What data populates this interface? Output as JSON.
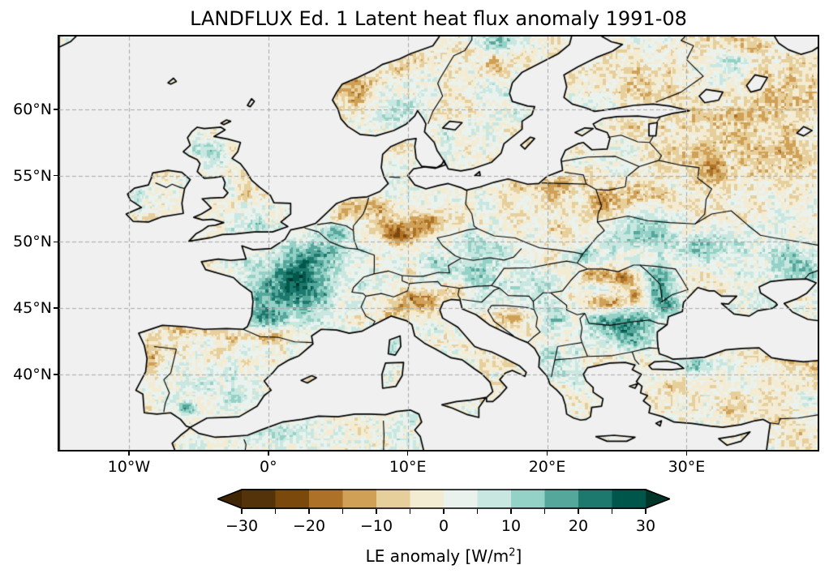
{
  "figure": {
    "title": "LANDFLUX Ed. 1 Latent heat flux anomaly 1991-08",
    "background_color": "#ffffff"
  },
  "map": {
    "ocean_color": "#f0f0f0",
    "coastline_color": "#000000",
    "border_color": "#000000",
    "gridline_color": "#a9a9a9",
    "extent": {
      "lon_min": -15,
      "lon_max": 39.4,
      "lat_min": 34.3,
      "lat_max": 65.5
    },
    "x_ticks": [
      {
        "deg": -10,
        "label": "10°W"
      },
      {
        "deg": 0,
        "label": "0°"
      },
      {
        "deg": 10,
        "label": "10°E"
      },
      {
        "deg": 20,
        "label": "20°E"
      },
      {
        "deg": 30,
        "label": "30°E"
      }
    ],
    "y_ticks": [
      {
        "deg": 60,
        "label": "60°N"
      },
      {
        "deg": 55,
        "label": "55°N"
      },
      {
        "deg": 50,
        "label": "50°N"
      },
      {
        "deg": 45,
        "label": "45°N"
      },
      {
        "deg": 40,
        "label": "40°N"
      }
    ]
  },
  "colorbar": {
    "label_prefix": "LE anomaly [W/m",
    "label_sup": "2",
    "label_suffix": "]",
    "tick_values": [
      -30,
      -25,
      -20,
      -15,
      -10,
      -5,
      0,
      5,
      10,
      15,
      20,
      25,
      30
    ],
    "tick_labels": [
      "−30",
      "",
      "−20",
      "",
      "−10",
      "",
      "0",
      "",
      "10",
      "",
      "20",
      "",
      "30"
    ],
    "levels": [
      -30,
      -25,
      -20,
      -15,
      -10,
      -5,
      0,
      5,
      10,
      15,
      20,
      25,
      30
    ],
    "bin_colors": [
      "#54330a",
      "#7c490d",
      "#ae7128",
      "#cfa055",
      "#e7cf9c",
      "#f4ebd3",
      "#eaf2ee",
      "#c8e7e0",
      "#94d1c6",
      "#55a79b",
      "#1d786d",
      "#00564a"
    ],
    "under_color": "#402605",
    "over_color": "#00352a",
    "outline_color": "#000000"
  },
  "chart_data": {
    "type": "heatmap",
    "title": "LANDFLUX Ed. 1 Latent heat flux anomaly 1991-08",
    "units": "W/m2",
    "value_range": [
      -30,
      30
    ],
    "bin_width": 5,
    "colormap": "brown-to-teal diverging (BrBG-like), 12 discrete bins with under/over arrows",
    "map_extent_deg": {
      "lon": [
        -15,
        39.4
      ],
      "lat": [
        34.3,
        65.5
      ]
    },
    "grid_lons_deg": [
      -10,
      0,
      10,
      20,
      30
    ],
    "grid_lats_deg": [
      40,
      45,
      50,
      55,
      60
    ],
    "anomaly_regions": [
      {
        "name": "france-core-wet",
        "lon": 1.8,
        "lat": 46.6,
        "sx": 3.0,
        "sy": 2.4,
        "amp": 22
      },
      {
        "name": "france-north-wet",
        "lon": 3.3,
        "lat": 48.9,
        "sx": 2.2,
        "sy": 1.3,
        "amp": 12
      },
      {
        "name": "france-southwest-wet",
        "lon": -0.3,
        "lat": 44.3,
        "sx": 1.4,
        "sy": 1.2,
        "amp": 14
      },
      {
        "name": "belgium-wet",
        "lon": 4.8,
        "lat": 50.7,
        "sx": 1.1,
        "sy": 0.7,
        "amp": 13
      },
      {
        "name": "netherlands-dry",
        "lon": 5.7,
        "lat": 52.4,
        "sx": 0.9,
        "sy": 0.8,
        "amp": -13
      },
      {
        "name": "nw-germany-dry",
        "lon": 7.9,
        "lat": 52.2,
        "sx": 1.2,
        "sy": 0.9,
        "amp": -9
      },
      {
        "name": "central-germany-dry",
        "lon": 9.4,
        "lat": 50.7,
        "sx": 1.5,
        "sy": 1.0,
        "amp": -22
      },
      {
        "name": "east-germany-dry",
        "lon": 11.3,
        "lat": 51.4,
        "sx": 1.5,
        "sy": 0.9,
        "amp": -12
      },
      {
        "name": "bavaria-wet",
        "lon": 11.6,
        "lat": 48.5,
        "sx": 1.6,
        "sy": 1.0,
        "amp": 7
      },
      {
        "name": "austria-alps-wet",
        "lon": 14.2,
        "lat": 47.4,
        "sx": 1.9,
        "sy": 0.9,
        "amp": 10
      },
      {
        "name": "czech-wet",
        "lon": 15.3,
        "lat": 49.7,
        "sx": 1.5,
        "sy": 0.9,
        "amp": 8
      },
      {
        "name": "n-italy-dry",
        "lon": 10.7,
        "lat": 45.5,
        "sx": 1.7,
        "sy": 0.8,
        "amp": -13
      },
      {
        "name": "e-alps-dry",
        "lon": 13.1,
        "lat": 46.2,
        "sx": 0.9,
        "sy": 0.6,
        "amp": -8
      },
      {
        "name": "liguria-dry",
        "lon": 9.2,
        "lat": 44.4,
        "sx": 1.1,
        "sy": 0.5,
        "amp": -8
      },
      {
        "name": "pyrenees-dry",
        "lon": -0.4,
        "lat": 42.9,
        "sx": 2.0,
        "sy": 0.55,
        "amp": -11
      },
      {
        "name": "n-spain-coast-dry",
        "lon": -4.6,
        "lat": 43.4,
        "sx": 2.0,
        "sy": 0.5,
        "amp": -8
      },
      {
        "name": "nw-portugal-dry",
        "lon": -8.4,
        "lat": 41.3,
        "sx": 0.7,
        "sy": 1.2,
        "amp": -9
      },
      {
        "name": "iberia-wet",
        "lon": -4.3,
        "lat": 39.3,
        "sx": 3.3,
        "sy": 2.4,
        "amp": 5
      },
      {
        "name": "s-spain-wet-spot",
        "lon": -5.8,
        "lat": 37.4,
        "sx": 0.6,
        "sy": 0.5,
        "amp": 13
      },
      {
        "name": "scotland-wet",
        "lon": -4.2,
        "lat": 56.9,
        "sx": 1.2,
        "sy": 1.0,
        "amp": 9
      },
      {
        "name": "s-england-wet",
        "lon": -1.0,
        "lat": 51.4,
        "sx": 1.5,
        "sy": 0.8,
        "amp": 8
      },
      {
        "name": "n-england-dry",
        "lon": -1.7,
        "lat": 54.1,
        "sx": 0.8,
        "sy": 0.7,
        "amp": -7
      },
      {
        "name": "ireland-wet",
        "lon": -8.2,
        "lat": 53.2,
        "sx": 1.5,
        "sy": 1.1,
        "amp": 6
      },
      {
        "name": "denmark-north-dry",
        "lon": 9.4,
        "lat": 57.1,
        "sx": 0.8,
        "sy": 0.5,
        "amp": -8
      },
      {
        "name": "denmark-south-wet",
        "lon": 9.3,
        "lat": 55.2,
        "sx": 1.0,
        "sy": 0.7,
        "amp": 6
      },
      {
        "name": "norway-coast-dry",
        "lon": 6.3,
        "lat": 61.3,
        "sx": 1.4,
        "sy": 1.6,
        "amp": -11
      },
      {
        "name": "mid-norway-dry",
        "lon": 9.5,
        "lat": 63.8,
        "sx": 1.6,
        "sy": 1.0,
        "amp": -9
      },
      {
        "name": "s-norway-wet",
        "lon": 9.2,
        "lat": 60.4,
        "sx": 1.0,
        "sy": 0.9,
        "amp": 7
      },
      {
        "name": "mid-sweden-dry",
        "lon": 16.0,
        "lat": 63.6,
        "sx": 2.2,
        "sy": 1.1,
        "amp": -9
      },
      {
        "name": "n-sweden-wet",
        "lon": 16.3,
        "lat": 65.1,
        "sx": 1.6,
        "sy": 0.9,
        "amp": 11
      },
      {
        "name": "s-sweden-wet",
        "lon": 14.5,
        "lat": 58.3,
        "sx": 1.8,
        "sy": 1.4,
        "amp": 5
      },
      {
        "name": "finland-dry",
        "lon": 26.5,
        "lat": 62.3,
        "sx": 2.6,
        "sy": 1.7,
        "amp": -6
      },
      {
        "name": "e-finland-wet",
        "lon": 33.5,
        "lat": 63.3,
        "sx": 2.2,
        "sy": 1.4,
        "amp": 7
      },
      {
        "name": "estonia-dry",
        "lon": 25.6,
        "lat": 58.8,
        "sx": 1.5,
        "sy": 0.7,
        "amp": -4
      },
      {
        "name": "belarus-west-dry",
        "lon": 24.1,
        "lat": 52.8,
        "sx": 1.3,
        "sy": 0.9,
        "amp": -13
      },
      {
        "name": "belarus-east-dry",
        "lon": 27.2,
        "lat": 53.6,
        "sx": 1.6,
        "sy": 1.0,
        "amp": -9
      },
      {
        "name": "poland-dry",
        "lon": 19.0,
        "lat": 52.7,
        "sx": 2.6,
        "sy": 1.8,
        "amp": -4
      },
      {
        "name": "nw-russia-dry",
        "lon": 33.0,
        "lat": 58.0,
        "sx": 5.0,
        "sy": 3.6,
        "amp": -7
      },
      {
        "name": "moscow-dry",
        "lon": 37.5,
        "lat": 55.8,
        "sx": 2.6,
        "sy": 2.2,
        "amp": -8
      },
      {
        "name": "n-russia-dry",
        "lon": 37.0,
        "lat": 62.0,
        "sx": 3.0,
        "sy": 2.0,
        "amp": -7
      },
      {
        "name": "smolensk-dry",
        "lon": 31.8,
        "lat": 55.2,
        "sx": 1.6,
        "sy": 1.0,
        "amp": -9
      },
      {
        "name": "kola-dry",
        "lon": 34.5,
        "lat": 65.0,
        "sx": 3.0,
        "sy": 0.9,
        "amp": -6
      },
      {
        "name": "ukraine-nw-wet",
        "lon": 26.5,
        "lat": 50.6,
        "sx": 2.4,
        "sy": 1.4,
        "amp": 12
      },
      {
        "name": "ukraine-central-wet",
        "lon": 31.8,
        "lat": 49.4,
        "sx": 2.6,
        "sy": 1.2,
        "amp": 14
      },
      {
        "name": "ukraine-east-wet",
        "lon": 37.6,
        "lat": 48.6,
        "sx": 2.2,
        "sy": 1.4,
        "amp": 11
      },
      {
        "name": "azov-coast-wet",
        "lon": 38.6,
        "lat": 47.3,
        "sx": 1.5,
        "sy": 0.8,
        "amp": 10
      },
      {
        "name": "moldova-wet",
        "lon": 27.9,
        "lat": 46.8,
        "sx": 1.2,
        "sy": 1.4,
        "amp": 19
      },
      {
        "name": "wallachia-wet",
        "lon": 25.3,
        "lat": 43.9,
        "sx": 2.2,
        "sy": 0.9,
        "amp": 21
      },
      {
        "name": "bulgaria-wet",
        "lon": 25.4,
        "lat": 42.6,
        "sx": 1.9,
        "sy": 0.8,
        "amp": 13
      },
      {
        "name": "danube-delta-wet",
        "lon": 28.6,
        "lat": 45.3,
        "sx": 1.0,
        "sy": 1.0,
        "amp": 17
      },
      {
        "name": "carpathians-dry-n",
        "lon": 23.6,
        "lat": 47.5,
        "sx": 1.3,
        "sy": 0.55,
        "amp": -13
      },
      {
        "name": "carpathians-dry-ne",
        "lon": 25.6,
        "lat": 47.2,
        "sx": 1.1,
        "sy": 0.55,
        "amp": -13
      },
      {
        "name": "carpathians-dry-e",
        "lon": 26.4,
        "lat": 46.2,
        "sx": 0.65,
        "sy": 0.9,
        "amp": -12
      },
      {
        "name": "carpathians-dry-s",
        "lon": 24.6,
        "lat": 45.5,
        "sx": 1.6,
        "sy": 0.5,
        "amp": -12
      },
      {
        "name": "transylvania-wet",
        "lon": 23.6,
        "lat": 46.4,
        "sx": 1.1,
        "sy": 0.7,
        "amp": 9
      },
      {
        "name": "hungary-wet",
        "lon": 19.6,
        "lat": 46.9,
        "sx": 2.0,
        "sy": 1.4,
        "amp": 9
      },
      {
        "name": "serbia-wet",
        "lon": 20.6,
        "lat": 44.3,
        "sx": 1.4,
        "sy": 1.2,
        "amp": 9
      },
      {
        "name": "w-ukraine-wet",
        "lon": 22.6,
        "lat": 48.9,
        "sx": 1.4,
        "sy": 0.8,
        "amp": 13
      },
      {
        "name": "bosnia-dry-spots",
        "lon": 17.6,
        "lat": 44.3,
        "sx": 0.9,
        "sy": 0.7,
        "amp": -7
      },
      {
        "name": "croatia-wet",
        "lon": 16.0,
        "lat": 45.6,
        "sx": 1.0,
        "sy": 0.7,
        "amp": 7
      },
      {
        "name": "albania-wet",
        "lon": 20.4,
        "lat": 41.2,
        "sx": 1.2,
        "sy": 1.0,
        "amp": 8
      },
      {
        "name": "n-greece-wet",
        "lon": 22.2,
        "lat": 39.9,
        "sx": 1.5,
        "sy": 1.2,
        "amp": 7
      },
      {
        "name": "turkey-dry",
        "lon": 33.5,
        "lat": 38.3,
        "sx": 5.0,
        "sy": 2.2,
        "amp": -4
      },
      {
        "name": "nw-turkey-wet",
        "lon": 30.3,
        "lat": 40.7,
        "sx": 1.8,
        "sy": 0.65,
        "amp": 15
      },
      {
        "name": "pontic-coast-dry",
        "lon": 36.6,
        "lat": 41.4,
        "sx": 2.2,
        "sy": 0.55,
        "amp": -12
      },
      {
        "name": "ne-turkey-dry",
        "lon": 39.3,
        "lat": 40.3,
        "sx": 1.2,
        "sy": 1.0,
        "amp": -8
      },
      {
        "name": "se-turkey-wet",
        "lon": 39.0,
        "lat": 37.4,
        "sx": 1.5,
        "sy": 1.0,
        "amp": 7
      },
      {
        "name": "syria-dry",
        "lon": 38.3,
        "lat": 35.4,
        "sx": 2.0,
        "sy": 1.4,
        "amp": -4
      },
      {
        "name": "morocco-wet",
        "lon": -4.5,
        "lat": 34.6,
        "sx": 2.2,
        "sy": 1.0,
        "amp": 6
      },
      {
        "name": "algeria-wet",
        "lon": 1.5,
        "lat": 35.2,
        "sx": 3.8,
        "sy": 1.1,
        "amp": 7
      },
      {
        "name": "tunisia-wet",
        "lon": 9.3,
        "lat": 35.3,
        "sx": 1.6,
        "sy": 1.4,
        "amp": 4
      },
      {
        "name": "corsica-wet",
        "lon": 9.0,
        "lat": 42.2,
        "sx": 0.5,
        "sy": 0.7,
        "amp": 8
      },
      {
        "name": "sicily-dry",
        "lon": 14.2,
        "lat": 37.5,
        "sx": 1.0,
        "sy": 0.6,
        "amp": -4
      },
      {
        "name": "kaliningrad-dry",
        "lon": 20.5,
        "lat": 54.3,
        "sx": 1.8,
        "sy": 0.7,
        "amp": -6
      },
      {
        "name": "baltic-coast-dry",
        "lon": 17.0,
        "lat": 54.3,
        "sx": 1.5,
        "sy": 0.6,
        "amp": -5
      }
    ]
  }
}
